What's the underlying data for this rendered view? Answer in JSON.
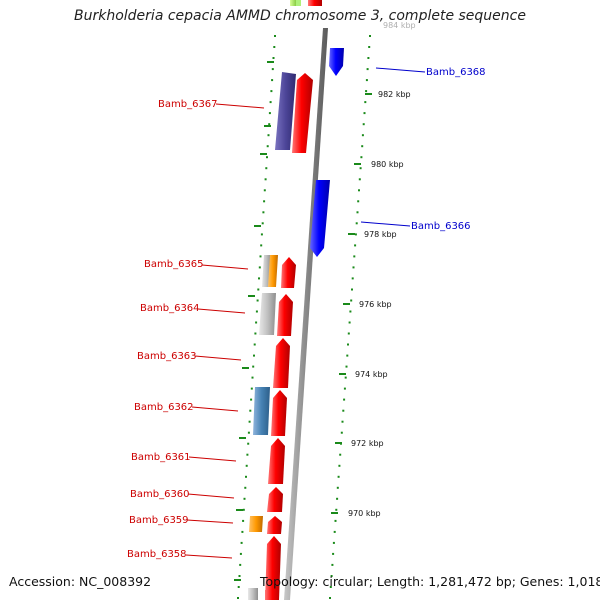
{
  "title": "Burkholderia cepacia AMMD chromosome 3, complete sequence",
  "accession": "Accession: NC_008392",
  "topology": "Topology: circular; Length: 1,281,472 bp; Genes: 1,018",
  "colors": {
    "forward_label": "#cc0000",
    "reverse_label": "#0000cc",
    "tick_dots": "#1a8a1a",
    "backbone": "#8a8a8a"
  },
  "ticks": [
    {
      "label": "984 kbp",
      "faded": true
    },
    {
      "label": "982 kbp"
    },
    {
      "label": "980 kbp"
    },
    {
      "label": "978 kbp"
    },
    {
      "label": "976 kbp"
    },
    {
      "label": "974 kbp"
    },
    {
      "label": "972 kbp"
    },
    {
      "label": "970 kbp"
    }
  ],
  "gene_labels": [
    {
      "name": "Bamb_6368",
      "strand": "reverse"
    },
    {
      "name": "Bamb_6367",
      "strand": "forward"
    },
    {
      "name": "Bamb_6366",
      "strand": "reverse"
    },
    {
      "name": "Bamb_6365",
      "strand": "forward"
    },
    {
      "name": "Bamb_6364",
      "strand": "forward"
    },
    {
      "name": "Bamb_6363",
      "strand": "forward"
    },
    {
      "name": "Bamb_6362",
      "strand": "forward"
    },
    {
      "name": "Bamb_6361",
      "strand": "forward"
    },
    {
      "name": "Bamb_6360",
      "strand": "forward"
    },
    {
      "name": "Bamb_6359",
      "strand": "forward"
    },
    {
      "name": "Bamb_6358",
      "strand": "forward"
    }
  ]
}
